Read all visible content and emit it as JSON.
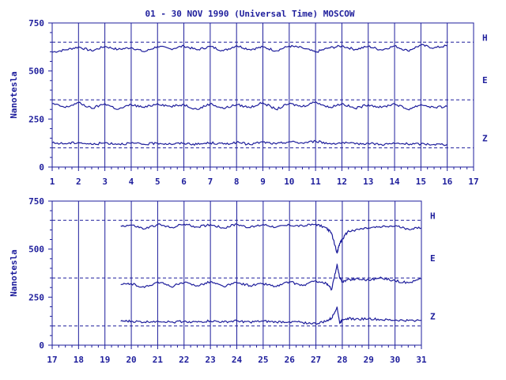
{
  "chart_data": {
    "title": "01 - 30 NOV 1990 (Universal Time) MOSCOW",
    "ylabel": "Nanotesla",
    "ylim": [
      0,
      750
    ],
    "yticks": [
      0,
      250,
      500,
      750
    ],
    "components": [
      "H",
      "E",
      "Z"
    ],
    "reference_levels": [
      650,
      350,
      100
    ],
    "panels": [
      {
        "type": "line",
        "xlim": [
          1,
          17
        ],
        "xticks": [
          1,
          2,
          3,
          4,
          5,
          6,
          7,
          8,
          9,
          10,
          11,
          12,
          13,
          14,
          15,
          16,
          17
        ],
        "data_end": 16,
        "series": [
          {
            "name": "H",
            "x": [
              1,
              1.5,
              2,
              2.5,
              3,
              3.5,
              4,
              4.5,
              5,
              5.5,
              6,
              6.5,
              7,
              7.5,
              8,
              8.5,
              9,
              9.5,
              10,
              10.5,
              11,
              11.5,
              12,
              12.5,
              13,
              13.5,
              14,
              14.5,
              15,
              15.5,
              16
            ],
            "values": [
              598,
              610,
              625,
              605,
              628,
              612,
              622,
              600,
              628,
              615,
              630,
              610,
              628,
              605,
              632,
              612,
              625,
              605,
              630,
              620,
              598,
              620,
              630,
              612,
              628,
              610,
              630,
              605,
              635,
              620,
              632
            ]
          },
          {
            "name": "E",
            "x": [
              1,
              1.5,
              2,
              2.5,
              3,
              3.5,
              4,
              4.5,
              5,
              5.5,
              6,
              6.5,
              7,
              7.5,
              8,
              8.5,
              9,
              9.5,
              10,
              10.5,
              11,
              11.5,
              12,
              12.5,
              13,
              13.5,
              14,
              14.5,
              15,
              15.5,
              16
            ],
            "values": [
              330,
              310,
              335,
              305,
              330,
              300,
              325,
              310,
              330,
              315,
              325,
              300,
              330,
              305,
              325,
              310,
              335,
              300,
              330,
              315,
              340,
              310,
              330,
              305,
              325,
              310,
              330,
              300,
              325,
              310,
              315
            ]
          },
          {
            "name": "Z",
            "x": [
              1,
              1.5,
              2,
              2.5,
              3,
              3.5,
              4,
              4.5,
              5,
              5.5,
              6,
              6.5,
              7,
              7.5,
              8,
              8.5,
              9,
              9.5,
              10,
              10.5,
              11,
              11.5,
              12,
              12.5,
              13,
              13.5,
              14,
              14.5,
              15,
              15.5,
              16
            ],
            "values": [
              125,
              122,
              128,
              118,
              126,
              120,
              124,
              118,
              125,
              120,
              124,
              118,
              126,
              120,
              128,
              118,
              130,
              120,
              132,
              125,
              135,
              122,
              126,
              120,
              124,
              118,
              122,
              120,
              120,
              118,
              118
            ]
          }
        ]
      },
      {
        "type": "line",
        "xlim": [
          17,
          31
        ],
        "xticks": [
          17,
          18,
          19,
          20,
          21,
          22,
          23,
          24,
          25,
          26,
          27,
          28,
          29,
          30,
          31
        ],
        "data_start": 19.6,
        "series": [
          {
            "name": "H",
            "x": [
              19.6,
              20,
              20.5,
              21,
              21.5,
              22,
              22.5,
              23,
              23.5,
              24,
              24.5,
              25,
              25.5,
              26,
              26.5,
              27,
              27.4,
              27.6,
              27.8,
              27.9,
              28,
              28.2,
              28.5,
              29,
              29.5,
              30,
              30.5,
              31
            ],
            "values": [
              620,
              625,
              605,
              628,
              612,
              630,
              615,
              628,
              610,
              630,
              612,
              628,
              615,
              625,
              620,
              630,
              610,
              580,
              480,
              530,
              550,
              590,
              600,
              610,
              615,
              620,
              605,
              610
            ]
          },
          {
            "name": "E",
            "x": [
              19.6,
              20,
              20.5,
              21,
              21.5,
              22,
              22.5,
              23,
              23.5,
              24,
              24.5,
              25,
              25.5,
              26,
              26.5,
              27,
              27.4,
              27.6,
              27.8,
              27.9,
              28,
              28.2,
              28.5,
              29,
              29.5,
              30,
              30.5,
              31
            ],
            "values": [
              315,
              320,
              300,
              330,
              305,
              325,
              310,
              330,
              305,
              325,
              310,
              320,
              305,
              330,
              310,
              335,
              320,
              290,
              420,
              350,
              330,
              340,
              345,
              340,
              350,
              335,
              325,
              345
            ]
          },
          {
            "name": "Z",
            "x": [
              19.6,
              20,
              20.5,
              21,
              21.5,
              22,
              22.5,
              23,
              23.5,
              24,
              24.5,
              25,
              25.5,
              26,
              26.5,
              27,
              27.4,
              27.6,
              27.8,
              27.9,
              28,
              28.2,
              28.5,
              29,
              29.5,
              30,
              30.5,
              31
            ],
            "values": [
              125,
              124,
              120,
              126,
              120,
              124,
              120,
              126,
              120,
              126,
              120,
              124,
              120,
              122,
              118,
              112,
              125,
              140,
              200,
              115,
              135,
              140,
              135,
              138,
              132,
              130,
              128,
              130
            ]
          }
        ]
      }
    ]
  }
}
